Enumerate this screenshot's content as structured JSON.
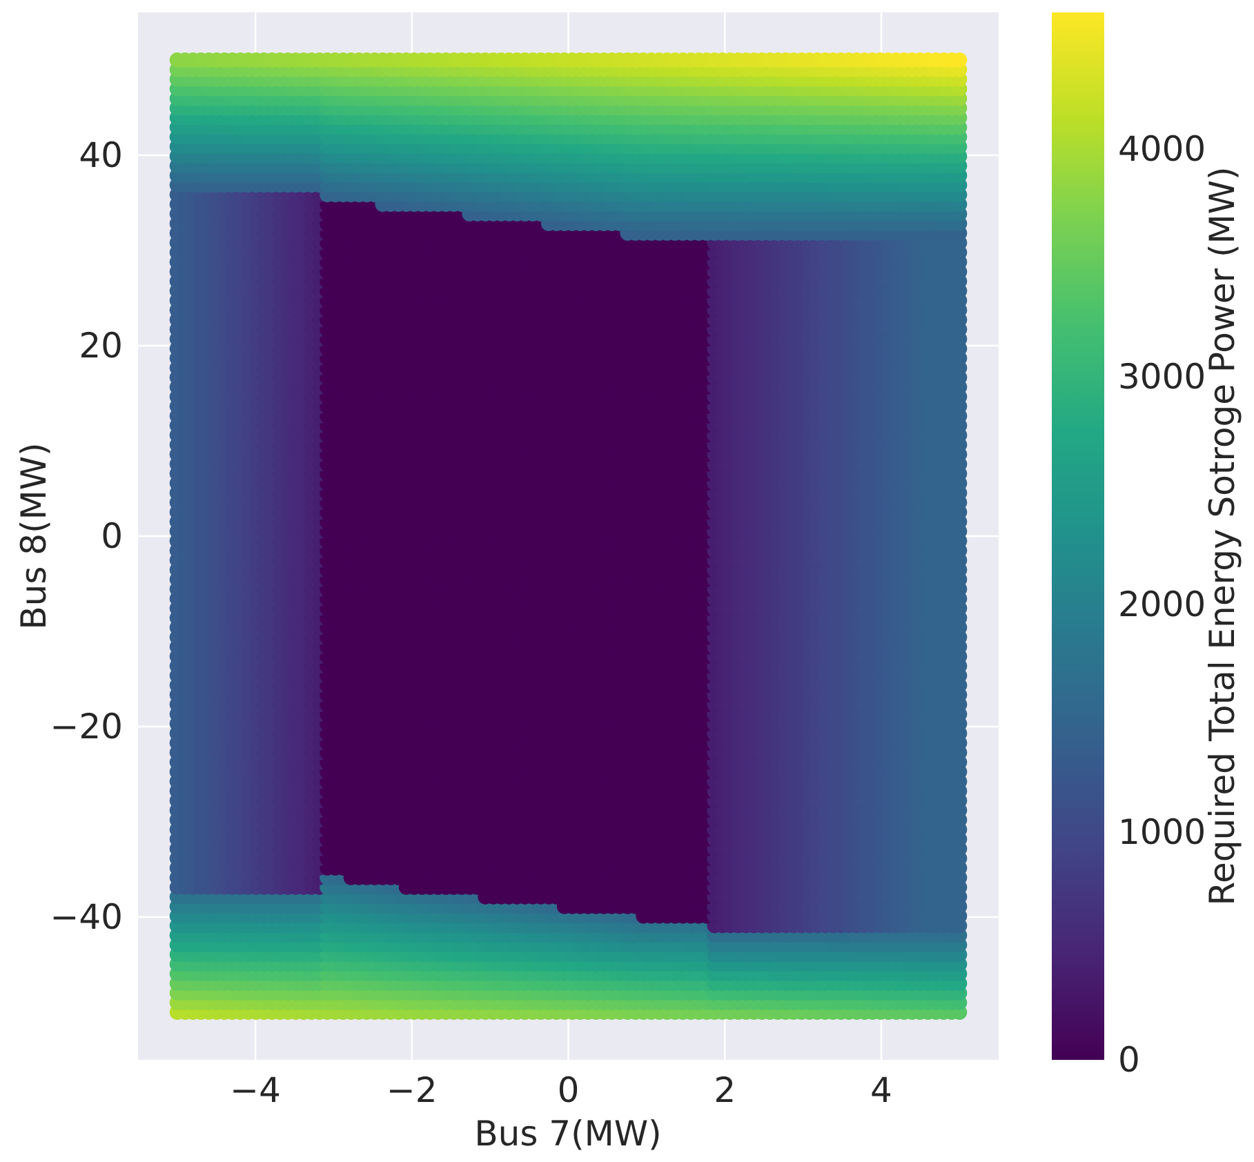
{
  "chart_data": {
    "type": "heatmap",
    "title": "",
    "xlabel": "Bus 7(MW)",
    "ylabel": "Bus 8(MW)",
    "colorbar_label": "Required Total Energy Sotroge Power (MW)",
    "colormap": "viridis",
    "xlim": [
      -5.5,
      5.5
    ],
    "ylim": [
      -55,
      55
    ],
    "clim": [
      0,
      4600
    ],
    "grid": true,
    "x_ticks": [
      -4,
      -2,
      0,
      2,
      4
    ],
    "x_tick_labels": [
      "−4",
      "−2",
      "0",
      "2",
      "4"
    ],
    "y_ticks": [
      -40,
      -20,
      0,
      20,
      40
    ],
    "y_tick_labels": [
      "−40",
      "−20",
      "0",
      "20",
      "40"
    ],
    "colorbar_ticks": [
      0,
      1000,
      2000,
      3000,
      4000
    ],
    "colorbar_tick_labels": [
      "0",
      "1000",
      "2000",
      "3000",
      "4000"
    ],
    "x_range": [
      -5,
      5
    ],
    "y_range": [
      -50,
      50
    ],
    "regions": {
      "zero_zone_x": [
        -3.1,
        1.8
      ],
      "zero_zone_y_top_at_x": [
        [
          -3.1,
          35.5
        ],
        [
          -2.0,
          34.5
        ],
        [
          -1.0,
          33.5
        ],
        [
          0.0,
          32.5
        ],
        [
          1.0,
          31.5
        ],
        [
          1.8,
          31.5
        ]
      ],
      "zero_zone_y_bottom_at_x": [
        [
          -3.1,
          -35.5
        ],
        [
          -2.0,
          -37.0
        ],
        [
          -1.0,
          -38.0
        ],
        [
          0.0,
          -39.0
        ],
        [
          1.0,
          -40.0
        ],
        [
          1.8,
          -40.0
        ]
      ],
      "left_band_value_range": [
        400,
        1400
      ],
      "right_band_value_range": [
        400,
        1500
      ],
      "top_band_value_range": [
        1500,
        4600
      ],
      "bottom_band_value_range": [
        1500,
        4200
      ]
    }
  },
  "colors": {
    "plot_background": "#eaeaf2",
    "grid": "#ffffff",
    "text": "#262626"
  }
}
